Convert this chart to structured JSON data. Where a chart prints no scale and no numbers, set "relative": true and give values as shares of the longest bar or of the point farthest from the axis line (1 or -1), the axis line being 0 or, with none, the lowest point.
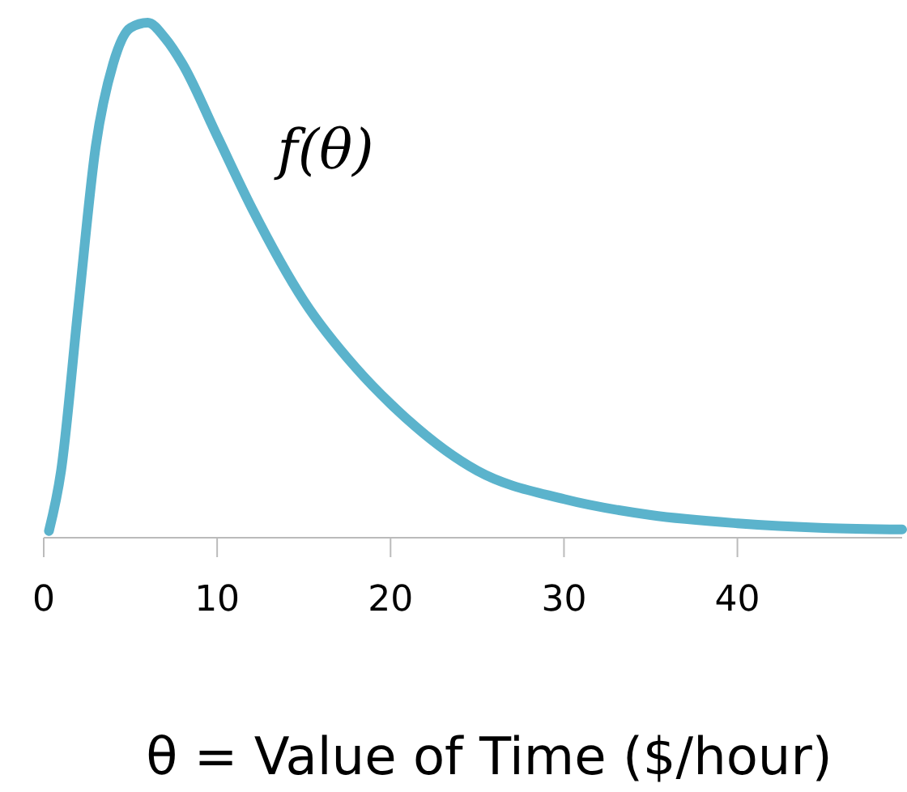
{
  "chart_data": {
    "type": "line",
    "relative": true,
    "xlabel": "θ = Value of Time ($/hour)",
    "xlim": [
      0,
      49.5
    ],
    "xticks": [
      0,
      10,
      20,
      30,
      40
    ],
    "grid": false,
    "legend": false,
    "marker": "none",
    "line_style": "solid",
    "series": [
      {
        "name": "f(θ)",
        "color": "#5bb3cc",
        "x": [
          0.3,
          1,
          2,
          3,
          4,
          5,
          6,
          7,
          8,
          10,
          12,
          15,
          18,
          20,
          25,
          30,
          35,
          40,
          45,
          49.5
        ],
        "values": [
          0.013,
          0.13,
          0.45,
          0.76,
          0.92,
          0.99,
          1,
          0.97,
          0.92,
          0.78,
          0.64,
          0.46,
          0.33,
          0.26,
          0.13,
          0.075,
          0.044,
          0.028,
          0.019,
          0.016
        ]
      }
    ]
  }
}
